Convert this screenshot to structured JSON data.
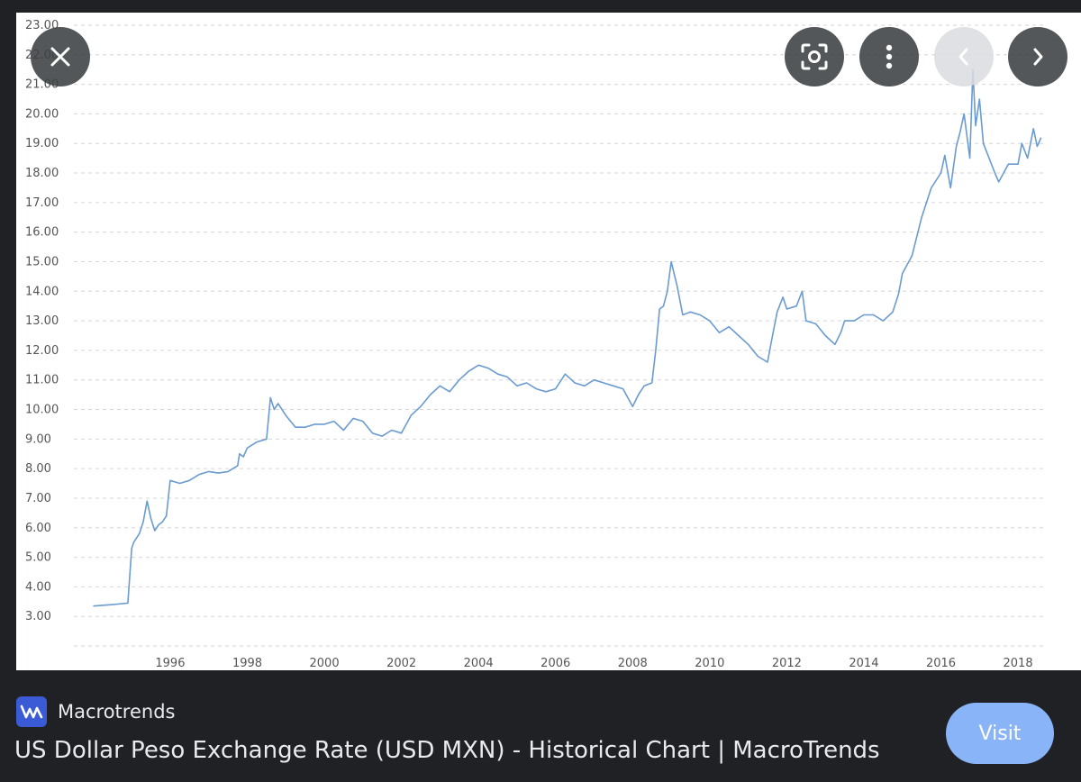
{
  "viewer": {
    "close_icon": "close-icon",
    "lens_icon": "visual-search-icon",
    "more_icon": "more-vert-icon",
    "prev_icon": "chevron-left-icon",
    "next_icon": "chevron-right-icon"
  },
  "source": {
    "name": "Macrotrends",
    "logo_icon": "macrotrends-logo-icon",
    "logo_color": "#3b5bd6"
  },
  "result": {
    "title": "US Dollar Peso Exchange Rate (USD MXN) - Historical Chart | MacroTrends"
  },
  "visit_button": {
    "label": "Visit",
    "color": "#8ab4f8"
  },
  "chart_data": {
    "type": "line",
    "title": "",
    "xlabel": "",
    "ylabel": "",
    "line_color": "#6a9bd1",
    "xlim": [
      1993.5,
      2018.7
    ],
    "ylim": [
      2.0,
      23.0
    ],
    "x_ticks": [
      "1996",
      "1998",
      "2000",
      "2002",
      "2004",
      "2006",
      "2008",
      "2010",
      "2012",
      "2014",
      "2016",
      "2018"
    ],
    "y_ticks": [
      "3.00",
      "4.00",
      "5.00",
      "6.00",
      "7.00",
      "8.00",
      "9.00",
      "10.00",
      "11.00",
      "12.00",
      "13.00",
      "14.00",
      "15.00",
      "16.00",
      "17.00",
      "18.00",
      "19.00",
      "20.00",
      "21.00",
      "22.00",
      "23.00"
    ],
    "series": [
      {
        "name": "USD MXN",
        "x": [
          1994.0,
          1994.5,
          1994.9,
          1995.0,
          1995.05,
          1995.2,
          1995.3,
          1995.4,
          1995.5,
          1995.6,
          1995.7,
          1995.8,
          1995.9,
          1996.0,
          1996.25,
          1996.5,
          1996.75,
          1997.0,
          1997.25,
          1997.5,
          1997.75,
          1997.8,
          1997.9,
          1998.0,
          1998.25,
          1998.5,
          1998.6,
          1998.7,
          1998.8,
          1999.0,
          1999.25,
          1999.5,
          1999.75,
          2000.0,
          2000.25,
          2000.5,
          2000.75,
          2001.0,
          2001.25,
          2001.5,
          2001.75,
          2002.0,
          2002.25,
          2002.5,
          2002.75,
          2003.0,
          2003.25,
          2003.5,
          2003.75,
          2004.0,
          2004.25,
          2004.5,
          2004.75,
          2005.0,
          2005.25,
          2005.5,
          2005.75,
          2006.0,
          2006.25,
          2006.5,
          2006.75,
          2007.0,
          2007.25,
          2007.5,
          2007.75,
          2008.0,
          2008.15,
          2008.3,
          2008.5,
          2008.6,
          2008.7,
          2008.8,
          2008.9,
          2009.0,
          2009.15,
          2009.3,
          2009.5,
          2009.75,
          2010.0,
          2010.25,
          2010.5,
          2010.75,
          2011.0,
          2011.25,
          2011.5,
          2011.6,
          2011.75,
          2011.9,
          2012.0,
          2012.25,
          2012.4,
          2012.5,
          2012.75,
          2013.0,
          2013.25,
          2013.4,
          2013.5,
          2013.75,
          2014.0,
          2014.25,
          2014.5,
          2014.75,
          2014.9,
          2015.0,
          2015.25,
          2015.5,
          2015.75,
          2016.0,
          2016.1,
          2016.25,
          2016.4,
          2016.5,
          2016.6,
          2016.75,
          2016.83,
          2016.9,
          2017.0,
          2017.1,
          2017.25,
          2017.4,
          2017.5,
          2017.75,
          2018.0,
          2018.1,
          2018.25,
          2018.4,
          2018.5,
          2018.6
        ],
        "values": [
          3.35,
          3.4,
          3.45,
          5.3,
          5.5,
          5.8,
          6.2,
          6.9,
          6.3,
          5.9,
          6.1,
          6.2,
          6.4,
          7.6,
          7.5,
          7.6,
          7.8,
          7.9,
          7.85,
          7.9,
          8.1,
          8.5,
          8.4,
          8.7,
          8.9,
          9.0,
          10.4,
          10.0,
          10.2,
          9.8,
          9.4,
          9.4,
          9.5,
          9.5,
          9.6,
          9.3,
          9.7,
          9.6,
          9.2,
          9.1,
          9.3,
          9.2,
          9.8,
          10.1,
          10.5,
          10.8,
          10.6,
          11.0,
          11.3,
          11.5,
          11.4,
          11.2,
          11.1,
          10.8,
          10.9,
          10.7,
          10.6,
          10.7,
          11.2,
          10.9,
          10.8,
          11.0,
          10.9,
          10.8,
          10.7,
          10.1,
          10.5,
          10.8,
          10.9,
          12.0,
          13.4,
          13.5,
          14.0,
          15.0,
          14.2,
          13.2,
          13.3,
          13.2,
          13.0,
          12.6,
          12.8,
          12.5,
          12.2,
          11.8,
          11.6,
          12.3,
          13.3,
          13.8,
          13.4,
          13.5,
          14.0,
          13.0,
          12.9,
          12.5,
          12.2,
          12.6,
          13.0,
          13.0,
          13.2,
          13.2,
          13.0,
          13.3,
          13.9,
          14.6,
          15.2,
          16.5,
          17.5,
          18.0,
          18.6,
          17.5,
          18.9,
          19.4,
          20.0,
          18.5,
          21.5,
          19.6,
          20.5,
          19.0,
          18.5,
          18.0,
          17.7,
          18.3,
          18.3,
          19.0,
          18.5,
          19.5,
          18.9,
          19.2
        ]
      }
    ]
  }
}
